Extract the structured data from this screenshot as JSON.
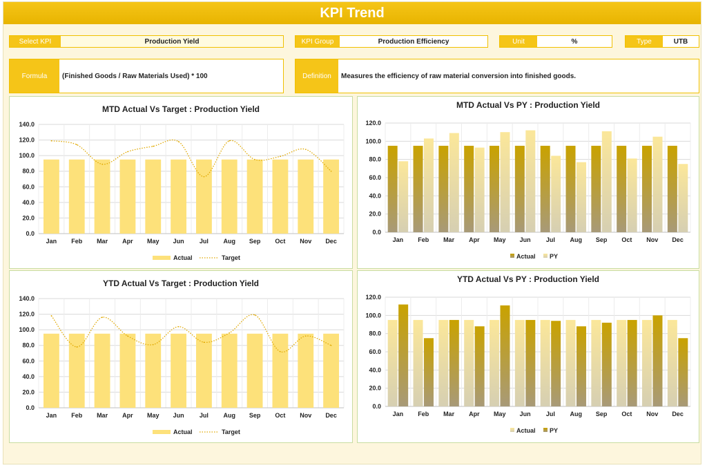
{
  "title": "KPI Trend",
  "controls": {
    "select_kpi_label": "Select KPI",
    "select_kpi_value": "Production Yield",
    "kpi_group_label": "KPI Group",
    "kpi_group_value": "Production Efficiency",
    "unit_label": "Unit",
    "unit_value": "%",
    "type_label": "Type",
    "type_value": "UTB"
  },
  "formula": {
    "label": "Formula",
    "text": "(Finished Goods / Raw Materials Used) * 100"
  },
  "definition": {
    "label": "Definition",
    "text": "Measures the efficiency of raw material conversion into finished goods."
  },
  "colors": {
    "accent": "#f5c518",
    "bar_light": "#fde17a",
    "bar_dark": "#c8a000",
    "target_line": "#e0a800"
  },
  "chart_data": [
    {
      "id": "mtd_target",
      "type": "bar",
      "title": "MTD Actual Vs Target : Production Yield",
      "categories": [
        "Jan",
        "Feb",
        "Mar",
        "Apr",
        "May",
        "Jun",
        "Jul",
        "Aug",
        "Sep",
        "Oct",
        "Nov",
        "Dec"
      ],
      "yticks": [
        "0.0",
        "20.0",
        "40.0",
        "60.0",
        "80.0",
        "100.0",
        "120.0",
        "140.0"
      ],
      "ylim": [
        0,
        140
      ],
      "series": [
        {
          "name": "Actual",
          "kind": "bar",
          "values": [
            95,
            95,
            95,
            95,
            95,
            95,
            95,
            95,
            95,
            95,
            95,
            95
          ]
        },
        {
          "name": "Target",
          "kind": "line",
          "values": [
            119,
            114,
            89,
            105,
            112,
            118,
            73,
            119,
            95,
            99,
            108,
            80
          ]
        }
      ],
      "legend": "bottom"
    },
    {
      "id": "mtd_py",
      "type": "bar",
      "title": "MTD Actual Vs PY : Production Yield",
      "categories": [
        "Jan",
        "Feb",
        "Mar",
        "Apr",
        "May",
        "Jun",
        "Jul",
        "Aug",
        "Sep",
        "Oct",
        "Nov",
        "Dec"
      ],
      "yticks": [
        "0.0",
        "20.0",
        "40.0",
        "60.0",
        "80.0",
        "100.0",
        "120.0"
      ],
      "ylim": [
        0,
        120
      ],
      "series": [
        {
          "name": "Actual",
          "kind": "bar",
          "values": [
            95,
            95,
            95,
            95,
            95,
            95,
            95,
            95,
            95,
            95,
            95,
            95
          ]
        },
        {
          "name": "PY",
          "kind": "bar",
          "values": [
            78,
            103,
            109,
            93,
            110,
            112,
            84,
            77,
            111,
            81,
            105,
            75
          ]
        }
      ],
      "legend": "bottom"
    },
    {
      "id": "ytd_target",
      "type": "bar",
      "title": "YTD Actual Vs Target : Production Yield",
      "categories": [
        "Jan",
        "Feb",
        "Mar",
        "Apr",
        "May",
        "Jun",
        "Jul",
        "Aug",
        "Sep",
        "Oct",
        "Nov",
        "Dec"
      ],
      "yticks": [
        "0.0",
        "20.0",
        "40.0",
        "60.0",
        "80.0",
        "100.0",
        "120.0",
        "140.0"
      ],
      "ylim": [
        0,
        140
      ],
      "series": [
        {
          "name": "Actual",
          "kind": "bar",
          "values": [
            95,
            95,
            95,
            95,
            95,
            95,
            95,
            95,
            95,
            95,
            95,
            95
          ]
        },
        {
          "name": "Target",
          "kind": "line",
          "values": [
            118,
            78,
            116,
            92,
            81,
            104,
            84,
            96,
            119,
            72,
            92,
            80
          ]
        }
      ],
      "legend": "bottom"
    },
    {
      "id": "ytd_py",
      "type": "bar",
      "title": "YTD Actual Vs PY : Production Yield",
      "categories": [
        "Jan",
        "Feb",
        "Mar",
        "Apr",
        "May",
        "Jun",
        "Jul",
        "Aug",
        "Sep",
        "Oct",
        "Nov",
        "Dec"
      ],
      "yticks": [
        "0.0",
        "20.0",
        "40.0",
        "60.0",
        "80.0",
        "100.0",
        "120.0"
      ],
      "ylim": [
        0,
        120
      ],
      "series": [
        {
          "name": "Actual",
          "kind": "bar",
          "values": [
            95,
            95,
            95,
            95,
            95,
            95,
            95,
            95,
            95,
            95,
            95,
            95
          ]
        },
        {
          "name": "PY",
          "kind": "bar",
          "values": [
            112,
            75,
            95,
            88,
            111,
            95,
            94,
            88,
            92,
            95,
            100,
            75
          ]
        }
      ],
      "legend": "bottom"
    }
  ]
}
